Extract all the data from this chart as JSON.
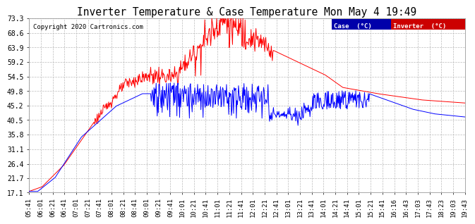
{
  "title": "Inverter Temperature & Case Temperature Mon May 4 19:49",
  "copyright": "Copyright 2020 Cartronics.com",
  "yticks": [
    17.1,
    21.7,
    26.4,
    31.1,
    35.8,
    40.5,
    45.2,
    49.8,
    54.5,
    59.2,
    63.9,
    68.6,
    73.3
  ],
  "xtick_labels": [
    "05:41",
    "06:01",
    "06:21",
    "06:41",
    "07:01",
    "07:21",
    "07:41",
    "08:01",
    "08:21",
    "08:41",
    "09:01",
    "09:21",
    "09:41",
    "10:01",
    "10:21",
    "10:41",
    "11:01",
    "11:21",
    "11:41",
    "12:01",
    "12:21",
    "12:41",
    "13:01",
    "13:21",
    "13:41",
    "14:01",
    "14:21",
    "14:41",
    "15:01",
    "15:21",
    "15:41",
    "16:16",
    "16:43",
    "17:03",
    "17:43",
    "18:23",
    "19:03",
    "19:43"
  ],
  "ymin": 17.1,
  "ymax": 73.3,
  "case_color": "#0000FF",
  "inverter_color": "#FF0000",
  "bg_color": "#FFFFFF",
  "plot_bg_color": "#FFFFFF",
  "grid_color": "#BBBBBB",
  "legend_case_bg": "#0000AA",
  "legend_inv_bg": "#CC0000",
  "title_fontsize": 10.5,
  "tick_fontsize": 7.0
}
